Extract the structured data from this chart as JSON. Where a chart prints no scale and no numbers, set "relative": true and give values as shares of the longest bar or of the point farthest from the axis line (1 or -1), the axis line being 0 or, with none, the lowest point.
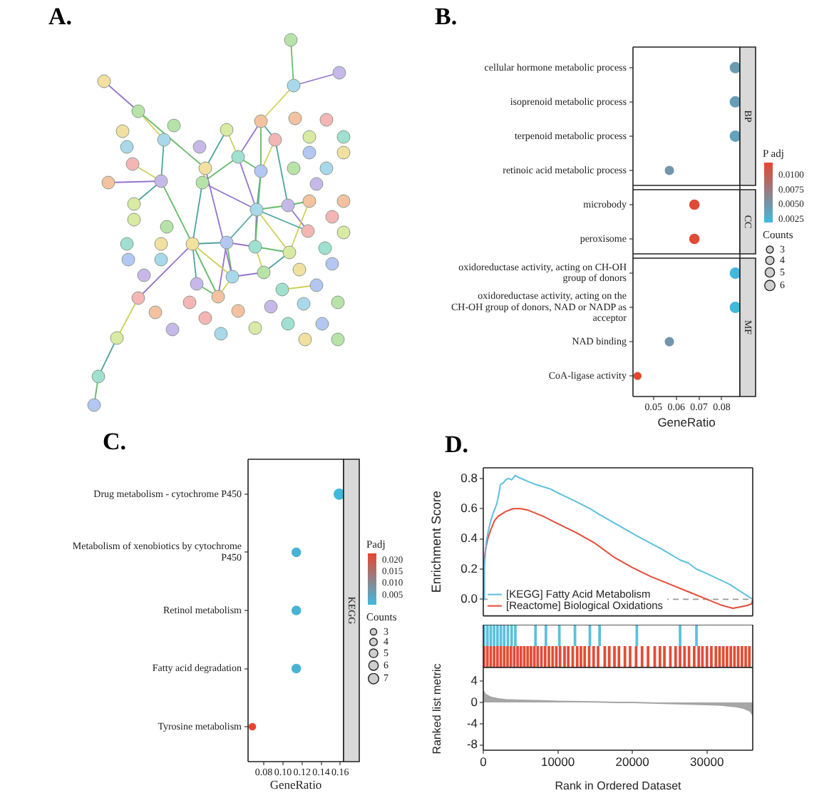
{
  "chart_data": [
    {
      "type": "other",
      "title": "A."
    },
    {
      "type": "bubble",
      "title": "B.",
      "orientation": "horizontal",
      "marker": "circle",
      "categories": [
        "cellular hormone metabolic process",
        "isoprenoid metabolic process",
        "terpenoid metabolic process",
        "retinoic acid metabolic process",
        "microbody",
        "peroxisome",
        "oxidoreductase activity, acting on CH-OH group of donors",
        "oxidoreductase activity, acting on the CH-OH group of donors, NAD or NADP as acceptor",
        "NAD binding",
        "CoA-ligase activity"
      ],
      "series": [
        {
          "name": "BP",
          "values": [
            0.086,
            0.086,
            0.086,
            0.057,
            null,
            null,
            null,
            null,
            null,
            null
          ],
          "sizes": [
            6,
            6,
            6,
            4,
            null,
            null,
            null,
            null,
            null,
            null
          ],
          "cvalues": [
            0.0045,
            0.0042,
            0.004,
            0.005,
            null,
            null,
            null,
            null,
            null,
            null
          ],
          "colors": [
            "#6a9cb2",
            "#659fb7",
            "#62a2bb",
            "#7296aa",
            null,
            null,
            null,
            null,
            null,
            null
          ]
        },
        {
          "name": "CC",
          "values": [
            null,
            null,
            null,
            null,
            0.068,
            0.068,
            null,
            null,
            null,
            null
          ],
          "sizes": [
            null,
            null,
            null,
            null,
            5,
            5,
            null,
            null,
            null,
            null
          ],
          "cvalues": [
            null,
            null,
            null,
            null,
            0.0118,
            0.0118,
            null,
            null,
            null,
            null
          ],
          "colors": [
            null,
            null,
            null,
            null,
            "#e04a37",
            "#e04a37",
            null,
            null,
            null,
            null
          ]
        },
        {
          "name": "MF",
          "values": [
            null,
            null,
            null,
            null,
            null,
            null,
            0.086,
            0.086,
            0.057,
            0.043
          ],
          "sizes": [
            null,
            null,
            null,
            null,
            null,
            null,
            6,
            6,
            4,
            3
          ],
          "cvalues": [
            null,
            null,
            null,
            null,
            null,
            null,
            0.0019,
            0.002,
            0.005,
            0.0122
          ],
          "colors": [
            null,
            null,
            null,
            null,
            null,
            null,
            "#40b9de",
            "#42b8dc",
            "#7296aa",
            "#e64630"
          ]
        }
      ],
      "clim": [
        0.0019,
        0.0122
      ],
      "cticks": [
        {
          "value": 0.01,
          "label": "0.0100"
        },
        0.0075,
        {
          "value": 0.005,
          "label": "0.0050"
        },
        0.0025
      ],
      "clabel": "P adj",
      "legend_title": "Counts",
      "size_legend": [
        3,
        4,
        5,
        6
      ],
      "xlim": [
        0.041,
        0.088
      ],
      "xticks": [
        0.05,
        0.06,
        0.07,
        0.08
      ],
      "xlabel": "GeneRatio"
    },
    {
      "type": "bubble",
      "title": "C.",
      "orientation": "horizontal",
      "marker": "circle",
      "categories": [
        "Drug metabolism - cytochrome P450",
        "Metabolism of xenobiotics by cytochrome P450",
        "Retinol metabolism",
        "Fatty acid degradation",
        "Tyrosine metabolism"
      ],
      "series": [
        {
          "name": "KEGG",
          "values": [
            0.159,
            0.114,
            0.114,
            0.114,
            0.068
          ],
          "sizes": [
            7,
            5,
            5,
            5,
            3
          ],
          "cvalues": [
            0.0008,
            0.002,
            0.002,
            0.002,
            0.0229
          ],
          "colors": [
            "#40b9de",
            "#49b3d5",
            "#49b3d5",
            "#49b3d5",
            "#e64630"
          ]
        }
      ],
      "clim": [
        0.0008,
        0.0229
      ],
      "cticks": [
        {
          "value": 0.02,
          "label": "0.020"
        },
        0.015,
        {
          "value": 0.01,
          "label": "0.010"
        },
        0.005
      ],
      "clabel": "Padj",
      "legend_title": "Counts",
      "size_legend": [
        3,
        4,
        5,
        6,
        7
      ],
      "xlim": [
        0.0635,
        0.1635
      ],
      "xticks": [
        0.08,
        {
          "value": 0.1,
          "label": "0.10"
        },
        0.12,
        0.14,
        0.16
      ],
      "xlabel": "GeneRatio"
    },
    {
      "type": "line",
      "title": "D.",
      "ylabel": "Enrichment Score",
      "marker": "none",
      "legend": "bottom left",
      "xlim": [
        0,
        36150
      ],
      "ylim": [
        -0.11,
        0.87
      ],
      "yticks": [
        {
          "value": 0,
          "label": "0.0"
        },
        0.2,
        0.4,
        0.6,
        0.8
      ],
      "tick_labels": "y",
      "ref_lines": [
        {
          "axis": "y",
          "value": 0,
          "color": "#999999",
          "line_style": "dashed"
        }
      ],
      "series": [
        {
          "name": "[KEGG] Fatty Acid Metabolism",
          "color": "#5bc0de",
          "x": [
            0,
            150,
            400,
            700,
            1000,
            1400,
            1800,
            2100,
            2300,
            2700,
            3000,
            3400,
            3800,
            4300,
            4600,
            6000,
            7000,
            8300,
            9000,
            10200,
            12300,
            14300,
            15600,
            20600,
            24000,
            26400,
            27500,
            28600,
            30000,
            33000,
            36150
          ],
          "values": [
            0,
            0.22,
            0.38,
            0.46,
            0.52,
            0.58,
            0.63,
            0.7,
            0.76,
            0.77,
            0.79,
            0.8,
            0.79,
            0.82,
            0.81,
            0.78,
            0.76,
            0.74,
            0.73,
            0.7,
            0.65,
            0.6,
            0.56,
            0.42,
            0.33,
            0.26,
            0.24,
            0.2,
            0.17,
            0.1,
            0
          ]
        },
        {
          "name": "[Reactome] Biological Oxidations",
          "color": "#e64b35",
          "x": [
            0,
            100,
            300,
            600,
            1000,
            1500,
            2000,
            3000,
            4000,
            5000,
            6000,
            8000,
            10000,
            12500,
            15000,
            17500,
            20000,
            22500,
            25000,
            27500,
            30000,
            32000,
            33500,
            34500,
            35500,
            36000,
            36150
          ],
          "values": [
            0,
            0.25,
            0.33,
            0.4,
            0.46,
            0.52,
            0.55,
            0.58,
            0.6,
            0.6,
            0.59,
            0.55,
            0.5,
            0.44,
            0.37,
            0.28,
            0.21,
            0.15,
            0.1,
            0.05,
            0,
            -0.04,
            -0.06,
            -0.05,
            -0.04,
            -0.03,
            0
          ]
        }
      ]
    },
    {
      "type": "bar",
      "relative": true,
      "xlim": [
        0,
        36150
      ],
      "tick_labels": false,
      "color": "#5bc0de",
      "x": [
        100,
        550,
        1000,
        1450,
        1900,
        2350,
        2800,
        3300,
        3800,
        4300,
        7000,
        8400,
        10200,
        12300,
        14300,
        15600,
        20600,
        26400,
        28600
      ],
      "values": [
        1,
        1,
        1,
        1,
        1,
        1,
        1,
        1,
        1,
        1,
        1,
        1,
        1,
        1,
        1,
        1,
        1,
        1,
        1
      ]
    },
    {
      "type": "bar",
      "relative": true,
      "xlim": [
        0,
        36150
      ],
      "tick_labels": false,
      "color": "#e64b35",
      "x": [
        100,
        550,
        1000,
        1450,
        1900,
        2350,
        2800,
        3250,
        3700,
        4150,
        4600,
        5050,
        5500,
        5950,
        6400,
        6850,
        7300,
        7800,
        8300,
        8800,
        9300,
        9800,
        10300,
        10900,
        11400,
        12000,
        12600,
        13100,
        13600,
        14200,
        14800,
        15400,
        16300,
        16900,
        17600,
        18200,
        19000,
        19700,
        20500,
        21300,
        22100,
        23000,
        23700,
        24300,
        25100,
        25800,
        26400,
        27000,
        27600,
        28300,
        28900,
        29400,
        30000,
        30600,
        31200,
        31700,
        32200,
        32700,
        33200,
        33700,
        34200,
        34700,
        35200,
        35700
      ],
      "values": [
        1,
        1,
        1,
        1,
        1,
        1,
        1,
        1,
        1,
        1,
        1,
        1,
        1,
        1,
        1,
        1,
        1,
        1,
        1,
        1,
        1,
        1,
        1,
        1,
        1,
        1,
        1,
        1,
        1,
        1,
        1,
        1,
        1,
        1,
        1,
        1,
        1,
        1,
        1,
        1,
        1,
        1,
        1,
        1,
        1,
        1,
        1,
        1,
        1,
        1,
        1,
        1,
        1,
        1,
        1,
        1,
        1,
        1,
        1,
        1,
        1,
        1,
        1,
        1
      ]
    },
    {
      "type": "area",
      "color": "#a6a6a6",
      "x": [
        0,
        300,
        1000,
        2000,
        3000,
        5000,
        8000,
        10000,
        15000,
        18000,
        20000,
        25000,
        30000,
        32000,
        34000,
        35000,
        35800,
        36150
      ],
      "values": [
        2.2,
        1.5,
        1,
        0.7,
        0.5,
        0.4,
        0.3,
        0.2,
        0.1,
        0,
        0,
        -0.2,
        -0.4,
        -0.5,
        -0.8,
        -1.1,
        -1.6,
        -2.3
      ],
      "xlim": [
        0,
        36150
      ],
      "ylim": [
        -9,
        6.6
      ],
      "yticks": [
        -8,
        -4,
        0,
        4
      ],
      "xticks": [
        0,
        10000,
        20000,
        30000
      ],
      "xlabel": "Rank in Ordered Dataset",
      "ylabel": "Ranked list metric"
    }
  ]
}
